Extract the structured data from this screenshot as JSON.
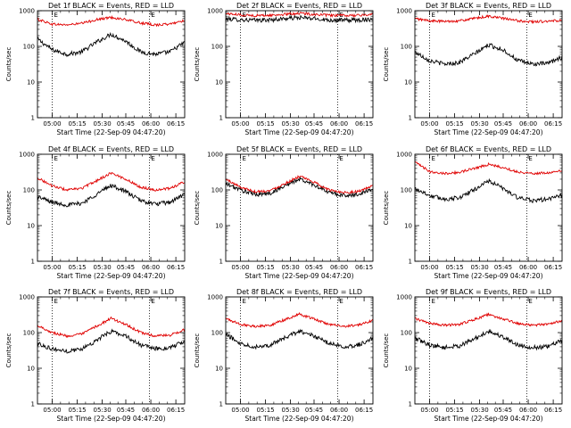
{
  "colors": {
    "events": "#000000",
    "lld": "#e00000",
    "background": "#ffffff",
    "axis": "#000000"
  },
  "chart_data": [
    {
      "type": "line",
      "title": "Det 1f BLACK = Events, RED = LLD",
      "xlabel": "Start Time (22-Sep-09 04:47:20)",
      "ylabel": "Counts/sec",
      "yscale": "log",
      "ylim": [
        1,
        1000
      ],
      "xlim": [
        0,
        100
      ],
      "xtick_labels": [
        "05:00",
        "05:15",
        "05:30",
        "05:45",
        "06:00",
        "06:15"
      ],
      "xtick_values": [
        10,
        27,
        44,
        60,
        77,
        94
      ],
      "ytick_labels": [
        "1",
        "10",
        "100",
        "1000"
      ],
      "ytick_values": [
        1,
        10,
        100,
        1000
      ],
      "marker_labels": [
        "E",
        "E"
      ],
      "markers_x": [
        10,
        76
      ],
      "grid": false,
      "series": [
        {
          "name": "Events",
          "x": [
            0,
            10,
            20,
            30,
            40,
            50,
            60,
            70,
            80,
            90,
            100
          ],
          "values": [
            160,
            80,
            60,
            70,
            130,
            220,
            140,
            70,
            60,
            70,
            130
          ]
        },
        {
          "name": "LLD",
          "x": [
            0,
            10,
            20,
            30,
            40,
            50,
            60,
            70,
            80,
            90,
            100
          ],
          "values": [
            580,
            420,
            400,
            440,
            560,
            650,
            560,
            450,
            400,
            420,
            540
          ]
        }
      ]
    },
    {
      "type": "line",
      "title": "Det 2f BLACK = Events, RED = LLD",
      "xlabel": "Start Time (22-Sep-09 04:47:20)",
      "ylabel": "Counts/sec",
      "yscale": "log",
      "ylim": [
        1,
        1000
      ],
      "xlim": [
        0,
        100
      ],
      "xtick_labels": [
        "05:00",
        "05:15",
        "05:30",
        "05:45",
        "06:00",
        "06:15"
      ],
      "xtick_values": [
        10,
        27,
        44,
        60,
        77,
        94
      ],
      "ytick_labels": [
        "1",
        "10",
        "100",
        "1000"
      ],
      "ytick_values": [
        1,
        10,
        100,
        1000
      ],
      "marker_labels": [
        "E",
        "E"
      ],
      "markers_x": [
        10,
        76
      ],
      "grid": false,
      "series": [
        {
          "name": "Events",
          "x": [
            0,
            10,
            20,
            30,
            40,
            50,
            60,
            70,
            80,
            90,
            100
          ],
          "values": [
            590,
            560,
            540,
            550,
            600,
            640,
            600,
            550,
            540,
            550,
            580
          ]
        },
        {
          "name": "LLD",
          "x": [
            0,
            10,
            20,
            30,
            40,
            50,
            60,
            70,
            80,
            90,
            100
          ],
          "values": [
            840,
            760,
            730,
            740,
            790,
            850,
            790,
            740,
            730,
            740,
            790
          ]
        }
      ]
    },
    {
      "type": "line",
      "title": "Det 3f BLACK = Events, RED = LLD",
      "xlabel": "Start Time (22-Sep-09 04:47:20)",
      "ylabel": "Counts/sec",
      "yscale": "log",
      "ylim": [
        1,
        1000
      ],
      "xlim": [
        0,
        100
      ],
      "xtick_labels": [
        "05:00",
        "05:15",
        "05:30",
        "05:45",
        "06:00",
        "06:15"
      ],
      "xtick_values": [
        10,
        27,
        44,
        60,
        77,
        94
      ],
      "ytick_labels": [
        "1",
        "10",
        "100",
        "1000"
      ],
      "ytick_values": [
        1,
        10,
        100,
        1000
      ],
      "marker_labels": [
        "E",
        "E"
      ],
      "markers_x": [
        10,
        76
      ],
      "grid": false,
      "series": [
        {
          "name": "Events",
          "x": [
            0,
            10,
            20,
            30,
            40,
            50,
            60,
            70,
            80,
            90,
            100
          ],
          "values": [
            70,
            40,
            32,
            35,
            60,
            110,
            80,
            40,
            32,
            33,
            50
          ]
        },
        {
          "name": "LLD",
          "x": [
            0,
            10,
            20,
            30,
            40,
            50,
            60,
            70,
            80,
            90,
            100
          ],
          "values": [
            600,
            520,
            500,
            520,
            600,
            700,
            610,
            520,
            490,
            500,
            540
          ]
        }
      ]
    },
    {
      "type": "line",
      "title": "Det 4f BLACK = Events, RED = LLD",
      "xlabel": "Start Time (22-Sep-09 04:47:20)",
      "ylabel": "Counts/sec",
      "yscale": "log",
      "ylim": [
        1,
        1000
      ],
      "xlim": [
        0,
        100
      ],
      "xtick_labels": [
        "05:00",
        "05:15",
        "05:30",
        "05:45",
        "06:00",
        "06:15"
      ],
      "xtick_values": [
        10,
        27,
        44,
        60,
        77,
        94
      ],
      "ytick_labels": [
        "1",
        "10",
        "100",
        "1000"
      ],
      "ytick_values": [
        1,
        10,
        100,
        1000
      ],
      "marker_labels": [
        "E",
        "E"
      ],
      "markers_x": [
        10,
        76
      ],
      "grid": false,
      "series": [
        {
          "name": "Events",
          "x": [
            0,
            10,
            20,
            30,
            40,
            50,
            60,
            70,
            80,
            90,
            100
          ],
          "values": [
            65,
            45,
            38,
            42,
            75,
            135,
            90,
            50,
            40,
            45,
            75
          ]
        },
        {
          "name": "LLD",
          "x": [
            0,
            10,
            20,
            30,
            40,
            50,
            60,
            70,
            80,
            90,
            100
          ],
          "values": [
            220,
            130,
            100,
            110,
            180,
            300,
            200,
            120,
            100,
            110,
            170
          ]
        }
      ]
    },
    {
      "type": "line",
      "title": "Det 5f BLACK = Events, RED = LLD",
      "xlabel": "Start Time (22-Sep-09 04:47:20)",
      "ylabel": "Counts/sec",
      "yscale": "log",
      "ylim": [
        1,
        1000
      ],
      "xlim": [
        0,
        100
      ],
      "xtick_labels": [
        "05:00",
        "05:15",
        "05:30",
        "05:45",
        "06:00",
        "06:15"
      ],
      "xtick_values": [
        10,
        27,
        44,
        60,
        77,
        94
      ],
      "ytick_labels": [
        "1",
        "10",
        "100",
        "1000"
      ],
      "ytick_values": [
        1,
        10,
        100,
        1000
      ],
      "marker_labels": [
        "E",
        "E"
      ],
      "markers_x": [
        10,
        76
      ],
      "grid": false,
      "series": [
        {
          "name": "Events",
          "x": [
            0,
            10,
            20,
            30,
            40,
            50,
            60,
            70,
            80,
            90,
            100
          ],
          "values": [
            150,
            100,
            75,
            80,
            130,
            200,
            140,
            85,
            70,
            75,
            110
          ]
        },
        {
          "name": "LLD",
          "x": [
            0,
            10,
            20,
            30,
            40,
            50,
            60,
            70,
            80,
            90,
            100
          ],
          "values": [
            200,
            120,
            90,
            95,
            150,
            240,
            165,
            100,
            85,
            90,
            130
          ]
        }
      ]
    },
    {
      "type": "line",
      "title": "Det 6f BLACK = Events, RED = LLD",
      "xlabel": "Start Time (22-Sep-09 04:47:20)",
      "ylabel": "Counts/sec",
      "yscale": "log",
      "ylim": [
        1,
        1000
      ],
      "xlim": [
        0,
        100
      ],
      "xtick_labels": [
        "05:00",
        "05:15",
        "05:30",
        "05:45",
        "06:00",
        "06:15"
      ],
      "xtick_values": [
        10,
        27,
        44,
        60,
        77,
        94
      ],
      "ytick_labels": [
        "1",
        "10",
        "100",
        "1000"
      ],
      "ytick_values": [
        1,
        10,
        100,
        1000
      ],
      "marker_labels": [
        "E",
        "E"
      ],
      "markers_x": [
        10,
        76
      ],
      "grid": false,
      "series": [
        {
          "name": "Events",
          "x": [
            0,
            10,
            20,
            30,
            40,
            50,
            60,
            70,
            80,
            90,
            100
          ],
          "values": [
            110,
            70,
            55,
            60,
            100,
            180,
            110,
            60,
            50,
            55,
            70
          ]
        },
        {
          "name": "LLD",
          "x": [
            0,
            10,
            20,
            30,
            40,
            50,
            60,
            70,
            80,
            90,
            100
          ],
          "values": [
            600,
            330,
            290,
            310,
            400,
            520,
            420,
            320,
            290,
            300,
            340
          ]
        }
      ]
    },
    {
      "type": "line",
      "title": "Det 7f BLACK = Events, RED = LLD",
      "xlabel": "Start Time (22-Sep-09 04:47:20)",
      "ylabel": "Counts/sec",
      "yscale": "log",
      "ylim": [
        1,
        1000
      ],
      "xlim": [
        0,
        100
      ],
      "xtick_labels": [
        "05:00",
        "05:15",
        "05:30",
        "05:45",
        "06:00",
        "06:15"
      ],
      "xtick_values": [
        10,
        27,
        44,
        60,
        77,
        94
      ],
      "ytick_labels": [
        "1",
        "10",
        "100",
        "1000"
      ],
      "ytick_values": [
        1,
        10,
        100,
        1000
      ],
      "marker_labels": [
        "E",
        "E"
      ],
      "markers_x": [
        10,
        76
      ],
      "grid": false,
      "series": [
        {
          "name": "Events",
          "x": [
            0,
            10,
            20,
            30,
            40,
            50,
            60,
            70,
            80,
            90,
            100
          ],
          "values": [
            50,
            35,
            30,
            35,
            60,
            110,
            80,
            45,
            35,
            38,
            55
          ]
        },
        {
          "name": "LLD",
          "x": [
            0,
            10,
            20,
            30,
            40,
            50,
            60,
            70,
            80,
            90,
            100
          ],
          "values": [
            160,
            100,
            80,
            90,
            150,
            250,
            170,
            100,
            80,
            85,
            120
          ]
        }
      ]
    },
    {
      "type": "line",
      "title": "Det 8f BLACK = Events, RED = LLD",
      "xlabel": "Start Time (22-Sep-09 04:47:20)",
      "ylabel": "Counts/sec",
      "yscale": "log",
      "ylim": [
        1,
        1000
      ],
      "xlim": [
        0,
        100
      ],
      "xtick_labels": [
        "05:00",
        "05:15",
        "05:30",
        "05:45",
        "06:00",
        "06:15"
      ],
      "xtick_values": [
        10,
        27,
        44,
        60,
        77,
        94
      ],
      "ytick_labels": [
        "1",
        "10",
        "100",
        "1000"
      ],
      "ytick_values": [
        1,
        10,
        100,
        1000
      ],
      "marker_labels": [
        "E",
        "E"
      ],
      "markers_x": [
        10,
        76
      ],
      "grid": false,
      "series": [
        {
          "name": "Events",
          "x": [
            0,
            10,
            20,
            30,
            40,
            50,
            60,
            70,
            80,
            90,
            100
          ],
          "values": [
            90,
            50,
            40,
            45,
            70,
            110,
            80,
            50,
            40,
            45,
            70
          ]
        },
        {
          "name": "LLD",
          "x": [
            0,
            10,
            20,
            30,
            40,
            50,
            60,
            70,
            80,
            90,
            100
          ],
          "values": [
            250,
            170,
            150,
            160,
            230,
            330,
            240,
            170,
            150,
            160,
            220
          ]
        }
      ]
    },
    {
      "type": "line",
      "title": "Det 9f BLACK = Events, RED = LLD",
      "xlabel": "Start Time (22-Sep-09 04:47:20)",
      "ylabel": "Counts/sec",
      "yscale": "log",
      "ylim": [
        1,
        1000
      ],
      "xlim": [
        0,
        100
      ],
      "xtick_labels": [
        "05:00",
        "05:15",
        "05:30",
        "05:45",
        "06:00",
        "06:15"
      ],
      "xtick_values": [
        10,
        27,
        44,
        60,
        77,
        94
      ],
      "ytick_labels": [
        "1",
        "10",
        "100",
        "1000"
      ],
      "ytick_values": [
        1,
        10,
        100,
        1000
      ],
      "marker_labels": [
        "E",
        "E"
      ],
      "markers_x": [
        10,
        76
      ],
      "grid": false,
      "series": [
        {
          "name": "Events",
          "x": [
            0,
            10,
            20,
            30,
            40,
            50,
            60,
            70,
            80,
            90,
            100
          ],
          "values": [
            70,
            45,
            38,
            42,
            65,
            110,
            75,
            45,
            38,
            40,
            60
          ]
        },
        {
          "name": "LLD",
          "x": [
            0,
            10,
            20,
            30,
            40,
            50,
            60,
            70,
            80,
            90,
            100
          ],
          "values": [
            250,
            180,
            160,
            170,
            230,
            320,
            240,
            180,
            160,
            170,
            220
          ]
        }
      ]
    }
  ]
}
